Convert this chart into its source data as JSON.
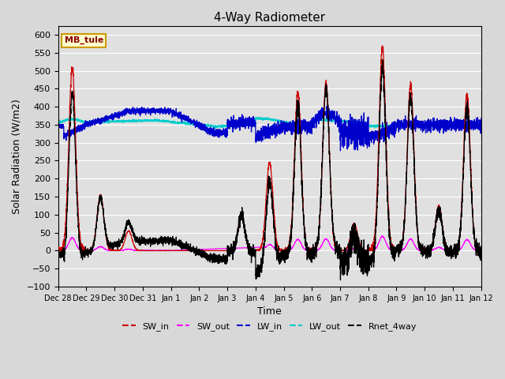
{
  "title": "4-Way Radiometer",
  "xlabel": "Time",
  "ylabel": "Solar Radiation (W/m2)",
  "ylim": [
    -100,
    625
  ],
  "yticks": [
    -100,
    -50,
    0,
    50,
    100,
    150,
    200,
    250,
    300,
    350,
    400,
    450,
    500,
    550,
    600
  ],
  "x_labels": [
    "Dec 28",
    "Dec 29",
    "Dec 30",
    "Dec 31",
    "Jan 1",
    "Jan 2",
    "Jan 3",
    "Jan 4",
    "Jan 5",
    "Jan 6",
    "Jan 7",
    "Jan 8",
    "Jan 9",
    "Jan 10",
    "Jan 11",
    "Jan 12"
  ],
  "annotation_text": "MB_tule",
  "annotation_box_color": "#ffffcc",
  "annotation_box_edge_color": "#cc9900",
  "annotation_text_color": "#880000",
  "colors": {
    "SW_in": "#cc0000",
    "SW_out": "#ff00ff",
    "LW_in": "#0000cc",
    "LW_out": "#00cccc",
    "Rnet_4way": "#000000"
  },
  "fig_facecolor": "#d8d8d8",
  "ax_facecolor": "#e0e0e0",
  "grid_color": "#ffffff",
  "daily_peaks_SW_in": [
    510,
    155,
    55,
    3,
    3,
    3,
    100,
    245,
    440,
    465,
    75,
    565,
    460,
    125,
    435
  ],
  "n_days": 15
}
